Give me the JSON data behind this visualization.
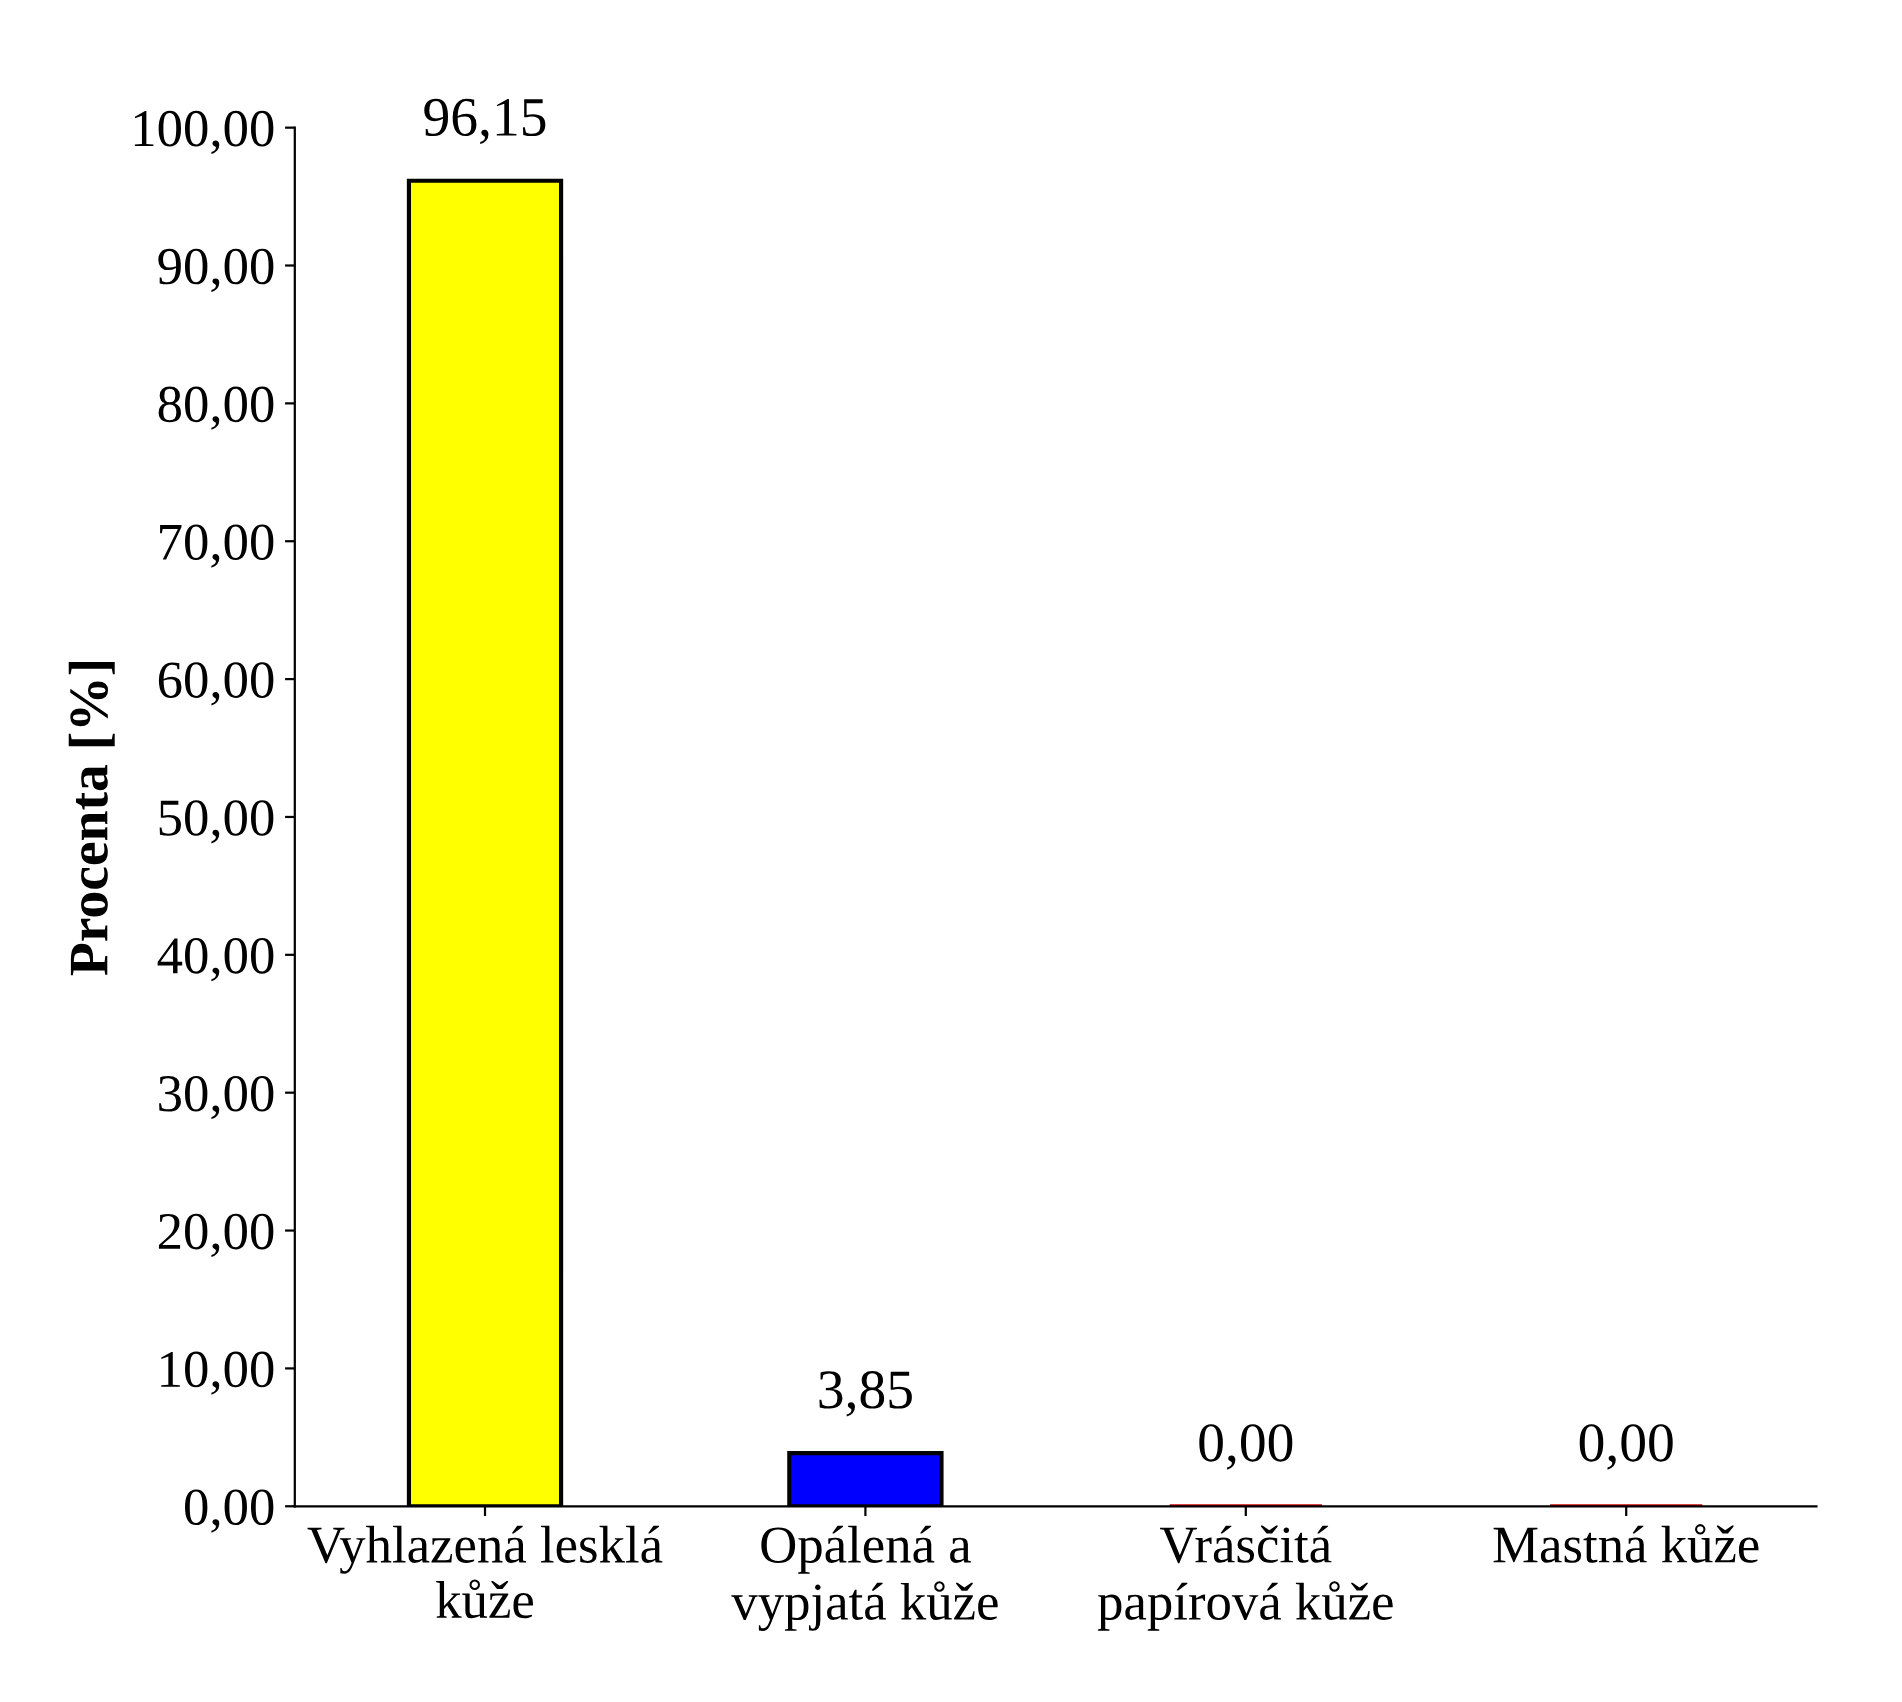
{
  "chart_data": {
    "type": "bar",
    "ylabel": "Procenta [%]",
    "categories": [
      "Vyhlazená lesklá\nkůže",
      "Opálená a\nvypjatá kůže",
      "Vrásčitá\npapírová kůže",
      "Mastná kůže"
    ],
    "values": [
      96.15,
      3.85,
      0.0,
      0.0
    ],
    "colors": [
      "#ffff00",
      "#0000ff",
      "#cc0000",
      "#cc0000"
    ],
    "value_labels": [
      "96,15",
      "3,85",
      "0,00",
      "0,00"
    ],
    "ylim": [
      0,
      100
    ],
    "yticks": [
      {
        "value": 0,
        "label": "0,00"
      },
      {
        "value": 10,
        "label": "10,00"
      },
      {
        "value": 20,
        "label": "20,00"
      },
      {
        "value": 30,
        "label": "30,00"
      },
      {
        "value": 40,
        "label": "40,00"
      },
      {
        "value": 50,
        "label": "50,00"
      },
      {
        "value": 60,
        "label": "60,00"
      },
      {
        "value": 70,
        "label": "70,00"
      },
      {
        "value": 80,
        "label": "80,00"
      },
      {
        "value": 90,
        "label": "90,00"
      },
      {
        "value": 100,
        "label": "100,00"
      }
    ],
    "grid": false,
    "legend": false
  }
}
